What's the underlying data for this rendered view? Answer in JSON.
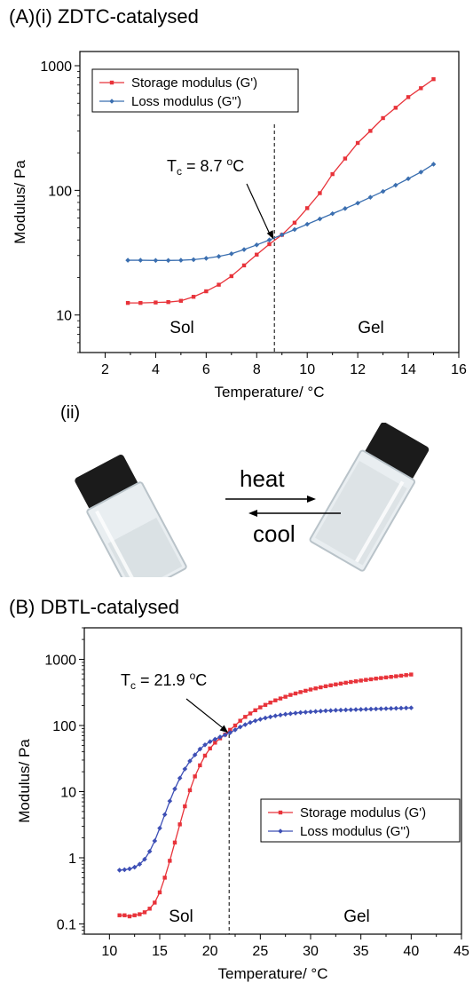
{
  "panelA": {
    "title": "(A)(i) ZDTC-catalysed",
    "sub": "(ii)"
  },
  "panelB": {
    "title": "(B) DBTL-catalysed"
  },
  "vials": {
    "heat": "heat",
    "cool": "cool"
  },
  "colors": {
    "storage": "#e8333a",
    "loss": "#3b6fb0",
    "lossB": "#3d4fb5"
  },
  "chart_data": [
    {
      "type": "line",
      "yscale": "log",
      "xlabel": "Temperature/ °C",
      "ylabel": "Modulus/ Pa",
      "xlim": [
        1,
        16
      ],
      "ylim": [
        5,
        1300
      ],
      "xticks": [
        2,
        4,
        6,
        8,
        10,
        12,
        14,
        16
      ],
      "yticks": [
        10,
        100,
        1000
      ],
      "legend_position": "top-left",
      "annotation": {
        "text": "Tc = 8.7 °C",
        "sub": "c",
        "sup": "o",
        "x": 8.7,
        "y": 40
      },
      "divider_x": 8.7,
      "regions": [
        "Sol",
        "Gel"
      ],
      "series": [
        {
          "name": "Storage modulus (G')",
          "x": [
            2.9,
            3.4,
            4.0,
            4.5,
            5.0,
            5.5,
            6.0,
            6.5,
            7.0,
            7.5,
            8.0,
            8.5,
            9.0,
            9.5,
            10.0,
            10.5,
            11.0,
            11.5,
            12.0,
            12.5,
            13.0,
            13.5,
            14.0,
            14.5,
            15.0
          ],
          "y": [
            12.5,
            12.5,
            12.6,
            12.7,
            13.0,
            14.0,
            15.5,
            17.5,
            20.5,
            25.0,
            30.5,
            37.0,
            44.0,
            55.0,
            72.0,
            95.0,
            135.0,
            180.0,
            240.0,
            300.0,
            380.0,
            460.0,
            560.0,
            660.0,
            780.0
          ]
        },
        {
          "name": "Loss modulus (G'')",
          "x": [
            2.9,
            3.4,
            4.0,
            4.5,
            5.0,
            5.5,
            6.0,
            6.5,
            7.0,
            7.5,
            8.0,
            8.5,
            9.0,
            9.5,
            10.0,
            10.5,
            11.0,
            11.5,
            12.0,
            12.5,
            13.0,
            13.5,
            14.0,
            14.5,
            15.0
          ],
          "y": [
            27.5,
            27.5,
            27.4,
            27.4,
            27.5,
            27.8,
            28.5,
            29.5,
            31.0,
            33.5,
            36.5,
            40.0,
            44.0,
            48.5,
            53.5,
            59.0,
            65.0,
            71.5,
            79.0,
            88.0,
            98.0,
            110.0,
            124.0,
            140.0,
            162.0
          ]
        }
      ]
    },
    {
      "type": "line",
      "yscale": "log",
      "xlabel": "Temperature/ °C",
      "ylabel": "Modulus/ Pa",
      "xlim": [
        7.5,
        45
      ],
      "ylim": [
        0.07,
        3000
      ],
      "xticks": [
        10,
        15,
        20,
        25,
        30,
        35,
        40,
        45
      ],
      "yticks": [
        0.1,
        1,
        10,
        100,
        1000
      ],
      "yticklabels": [
        "0.1",
        "1",
        "10",
        "100",
        "1000"
      ],
      "legend_position": "center-right",
      "annotation": {
        "text": "Tc = 21.9 °C",
        "sub": "c",
        "sup": "o",
        "x": 21.9,
        "y": 75
      },
      "divider_x": 21.9,
      "regions": [
        "Sol",
        "Gel"
      ],
      "series": [
        {
          "name": "Storage modulus (G')",
          "x": [
            11,
            11.5,
            12,
            12.5,
            13,
            13.5,
            14,
            14.5,
            15,
            15.5,
            16,
            16.5,
            17,
            17.5,
            18,
            18.5,
            19,
            19.5,
            20,
            20.5,
            21,
            21.5,
            22,
            22.5,
            23,
            23.5,
            24,
            24.5,
            25,
            25.5,
            26,
            26.5,
            27,
            27.5,
            28,
            28.5,
            29,
            29.5,
            30,
            30.5,
            31,
            31.5,
            32,
            32.5,
            33,
            33.5,
            34,
            34.5,
            35,
            35.5,
            36,
            36.5,
            37,
            37.5,
            38,
            38.5,
            39,
            39.5,
            40
          ],
          "y": [
            0.135,
            0.135,
            0.13,
            0.135,
            0.14,
            0.15,
            0.17,
            0.21,
            0.3,
            0.5,
            0.9,
            1.7,
            3.2,
            6.0,
            10.5,
            17,
            25,
            35,
            45,
            55,
            64,
            73,
            86,
            100,
            118,
            135,
            152,
            170,
            188,
            205,
            222,
            240,
            256,
            272,
            290,
            305,
            320,
            335,
            350,
            364,
            378,
            392,
            405,
            418,
            430,
            443,
            455,
            466,
            478,
            490,
            500,
            512,
            522,
            533,
            544,
            555,
            566,
            578,
            590
          ]
        },
        {
          "name": "Loss modulus (G'')",
          "x": [
            11,
            11.5,
            12,
            12.5,
            13,
            13.5,
            14,
            14.5,
            15,
            15.5,
            16,
            16.5,
            17,
            17.5,
            18,
            18.5,
            19,
            19.5,
            20,
            20.5,
            21,
            21.5,
            22,
            22.5,
            23,
            23.5,
            24,
            24.5,
            25,
            25.5,
            26,
            26.5,
            27,
            27.5,
            28,
            28.5,
            29,
            29.5,
            30,
            30.5,
            31,
            31.5,
            32,
            32.5,
            33,
            33.5,
            34,
            34.5,
            35,
            35.5,
            36,
            36.5,
            37,
            37.5,
            38,
            38.5,
            39,
            39.5,
            40
          ],
          "y": [
            0.65,
            0.66,
            0.68,
            0.72,
            0.8,
            0.95,
            1.25,
            1.8,
            2.8,
            4.5,
            7.2,
            11,
            16,
            22,
            29,
            36,
            44,
            51,
            57,
            62,
            67,
            72,
            78,
            86,
            95,
            103,
            111,
            118,
            124,
            130,
            135,
            140,
            144,
            148,
            151,
            154,
            157,
            159,
            161,
            163,
            165,
            167,
            168,
            170,
            171,
            172,
            173,
            174,
            175,
            176,
            177,
            178,
            179,
            180,
            181,
            182,
            183,
            184,
            185
          ]
        }
      ]
    }
  ]
}
